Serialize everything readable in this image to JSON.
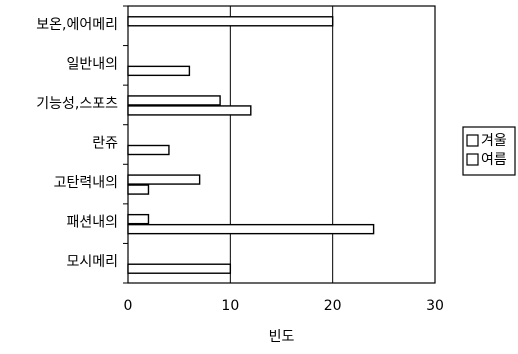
{
  "chart_data": {
    "type": "bar",
    "orientation": "horizontal",
    "categories": [
      "보온,에어메리",
      "일반내의",
      "기능성,스포츠",
      "란쥬",
      "고탄력내의",
      "패션내의",
      "모시메리"
    ],
    "series": [
      {
        "name": "겨울",
        "values": [
          20,
          0,
          9,
          0,
          7,
          2,
          0
        ]
      },
      {
        "name": "여름",
        "values": [
          0,
          6,
          12,
          4,
          2,
          24,
          10
        ]
      }
    ],
    "xlabel": "빈도",
    "ylabel": "",
    "xlim": [
      0,
      30
    ],
    "x_ticks": [
      0,
      10,
      20,
      30
    ],
    "x_tick_labels": [
      "0",
      "10",
      "20",
      "30"
    ],
    "grid": {
      "x": true,
      "y": false
    },
    "legend": {
      "position": "right",
      "entries": [
        "겨울",
        "여름"
      ]
    }
  }
}
